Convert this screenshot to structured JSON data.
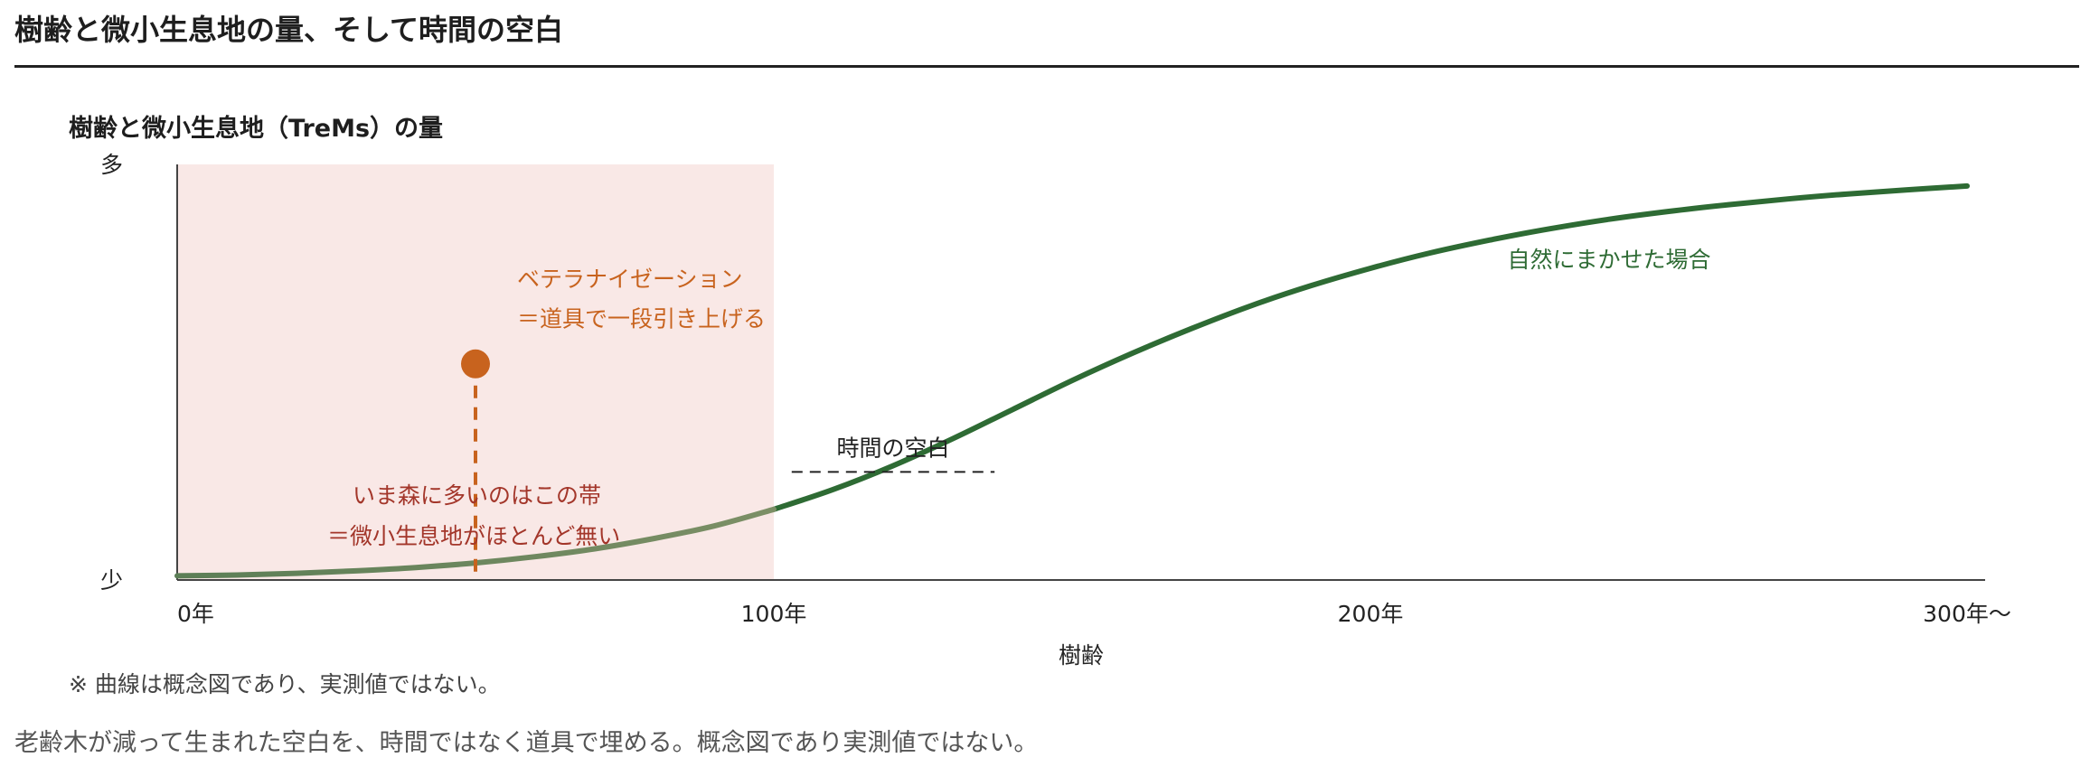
{
  "page": {
    "title": "樹齢と微小生息地の量、そして時間の空白",
    "note": "※ 曲線は概念図であり、実測値ではない。",
    "caption": "老齢木が減って生まれた空白を、時間ではなく道具で埋める。概念図であり実測値ではない。"
  },
  "chart_data": {
    "type": "line",
    "title": "樹齢と微小生息地（TreMs）の量",
    "xlabel": "樹齢",
    "ylabel": "",
    "xlim": [
      0,
      303
    ],
    "ylim": [
      0,
      1
    ],
    "x_ticks": [
      {
        "value": 0,
        "label": "0年"
      },
      {
        "value": 100,
        "label": "100年"
      },
      {
        "value": 200,
        "label": "200年"
      },
      {
        "value": 300,
        "label": "300年〜"
      }
    ],
    "y_ticks": [
      {
        "value": 1,
        "label": "多"
      },
      {
        "value": 0,
        "label": "少"
      }
    ],
    "grid": false,
    "series": [
      {
        "name": "自然にまかせた場合",
        "color": "#2e6b34",
        "x": [
          0,
          10,
          20,
          30,
          40,
          50,
          60,
          70,
          80,
          90,
          100,
          110,
          120,
          130,
          140,
          150,
          160,
          170,
          180,
          190,
          200,
          210,
          220,
          230,
          240,
          250,
          260,
          270,
          280,
          290,
          300
        ],
        "y": [
          0.01,
          0.012,
          0.016,
          0.022,
          0.03,
          0.041,
          0.056,
          0.075,
          0.1,
          0.13,
          0.17,
          0.218,
          0.275,
          0.34,
          0.41,
          0.48,
          0.545,
          0.605,
          0.66,
          0.708,
          0.75,
          0.787,
          0.818,
          0.845,
          0.868,
          0.887,
          0.903,
          0.917,
          0.929,
          0.939,
          0.948
        ]
      }
    ],
    "shaded_region": {
      "x_range": [
        0,
        100
      ],
      "color": "#f9e8e6",
      "label_lines": [
        "いま森に多いのはこの帯",
        "＝微小生息地がほとんど無い"
      ],
      "label_color": "#a3362a"
    },
    "veteranization": {
      "x": 50,
      "y": 0.52,
      "color": "#c8631e",
      "label_lines": [
        "ベテラナイゼーション",
        "＝道具で一段引き上げる"
      ]
    },
    "time_gap": {
      "label": "時間の空白",
      "x_range": [
        103,
        137
      ],
      "y": 0.26
    }
  }
}
